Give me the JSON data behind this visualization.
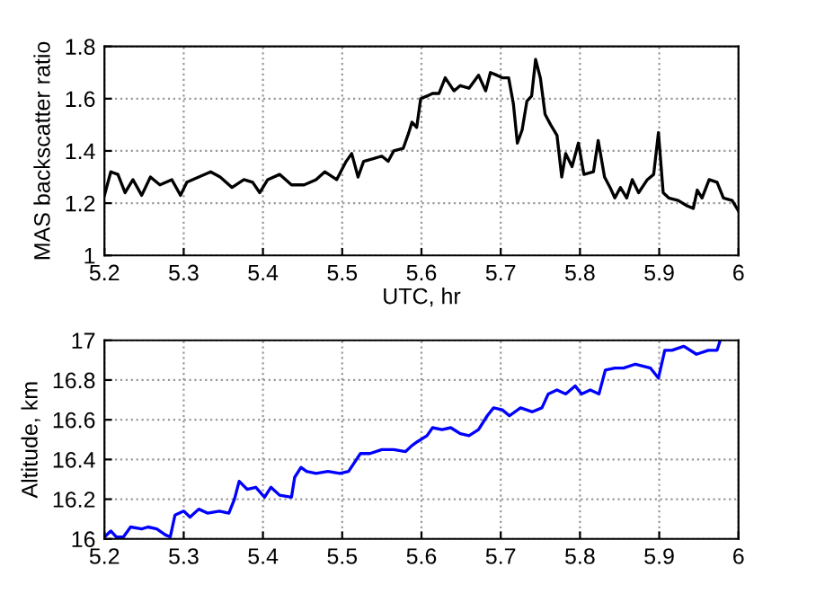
{
  "chart_data": [
    {
      "type": "line",
      "xlabel": "UTC, hr",
      "ylabel": "MAS backscatter ratio",
      "xlim": [
        5.2,
        6
      ],
      "ylim": [
        1,
        1.8
      ],
      "xticks": [
        5.2,
        5.3,
        5.4,
        5.5,
        5.6,
        5.7,
        5.8,
        5.9,
        6
      ],
      "yticks": [
        1,
        1.2,
        1.4,
        1.6,
        1.8
      ],
      "grid": true,
      "line_style": "solid",
      "series": [
        {
          "color": "#000000",
          "x": [
            5.2,
            5.208,
            5.217,
            5.226,
            5.236,
            5.247,
            5.258,
            5.27,
            5.285,
            5.296,
            5.304,
            5.319,
            5.334,
            5.346,
            5.361,
            5.376,
            5.387,
            5.396,
            5.406,
            5.421,
            5.436,
            5.452,
            5.467,
            5.478,
            5.493,
            5.505,
            5.512,
            5.52,
            5.527,
            5.539,
            5.55,
            5.558,
            5.565,
            5.577,
            5.584,
            5.588,
            5.594,
            5.599,
            5.607,
            5.614,
            5.622,
            5.63,
            5.641,
            5.649,
            5.66,
            5.672,
            5.681,
            5.687,
            5.695,
            5.702,
            5.71,
            5.716,
            5.721,
            5.727,
            5.733,
            5.739,
            5.744,
            5.75,
            5.756,
            5.763,
            5.771,
            5.777,
            5.782,
            5.79,
            5.798,
            5.805,
            5.817,
            5.823,
            5.831,
            5.838,
            5.844,
            5.851,
            5.859,
            5.866,
            5.874,
            5.885,
            5.893,
            5.899,
            5.905,
            5.912,
            5.924,
            5.935,
            5.943,
            5.948,
            5.954,
            5.963,
            5.973,
            5.981,
            5.992,
            6.0
          ],
          "values": [
            1.23,
            1.32,
            1.31,
            1.24,
            1.29,
            1.23,
            1.3,
            1.27,
            1.29,
            1.23,
            1.28,
            1.3,
            1.32,
            1.3,
            1.26,
            1.29,
            1.28,
            1.24,
            1.29,
            1.31,
            1.27,
            1.27,
            1.29,
            1.32,
            1.29,
            1.36,
            1.39,
            1.3,
            1.36,
            1.37,
            1.38,
            1.36,
            1.4,
            1.41,
            1.47,
            1.51,
            1.49,
            1.6,
            1.61,
            1.62,
            1.62,
            1.68,
            1.63,
            1.65,
            1.64,
            1.69,
            1.63,
            1.7,
            1.69,
            1.68,
            1.68,
            1.58,
            1.43,
            1.48,
            1.59,
            1.61,
            1.75,
            1.68,
            1.54,
            1.5,
            1.46,
            1.3,
            1.39,
            1.34,
            1.43,
            1.31,
            1.32,
            1.44,
            1.3,
            1.26,
            1.22,
            1.26,
            1.22,
            1.29,
            1.24,
            1.29,
            1.31,
            1.47,
            1.24,
            1.22,
            1.21,
            1.19,
            1.18,
            1.25,
            1.22,
            1.29,
            1.28,
            1.22,
            1.21,
            1.17
          ]
        }
      ]
    },
    {
      "type": "line",
      "ylabel": "Altitude, km",
      "xlim": [
        5.2,
        6
      ],
      "ylim": [
        16,
        17
      ],
      "xticks": [
        5.2,
        5.3,
        5.4,
        5.5,
        5.6,
        5.7,
        5.8,
        5.9,
        6
      ],
      "yticks": [
        16,
        16.2,
        16.4,
        16.6,
        16.8,
        17
      ],
      "grid": true,
      "line_style": "solid",
      "series": [
        {
          "color": "#0000ff",
          "x": [
            5.2,
            5.208,
            5.215,
            5.224,
            5.233,
            5.247,
            5.255,
            5.266,
            5.277,
            5.283,
            5.289,
            5.3,
            5.308,
            5.319,
            5.33,
            5.345,
            5.357,
            5.364,
            5.37,
            5.38,
            5.391,
            5.402,
            5.41,
            5.421,
            5.436,
            5.44,
            5.448,
            5.455,
            5.467,
            5.482,
            5.497,
            5.508,
            5.523,
            5.535,
            5.55,
            5.565,
            5.58,
            5.588,
            5.595,
            5.607,
            5.614,
            5.626,
            5.637,
            5.649,
            5.66,
            5.672,
            5.683,
            5.691,
            5.702,
            5.711,
            5.725,
            5.74,
            5.752,
            5.76,
            5.771,
            5.782,
            5.794,
            5.802,
            5.813,
            5.824,
            5.832,
            5.844,
            5.855,
            5.87,
            5.889,
            5.899,
            5.907,
            5.916,
            5.931,
            5.947,
            5.962,
            5.973,
            5.977
          ],
          "values": [
            16.01,
            16.04,
            16.01,
            16.01,
            16.06,
            16.05,
            16.06,
            16.05,
            16.02,
            16.01,
            16.12,
            16.14,
            16.11,
            16.15,
            16.13,
            16.14,
            16.13,
            16.2,
            16.29,
            16.25,
            16.26,
            16.21,
            16.26,
            16.22,
            16.21,
            16.31,
            16.36,
            16.34,
            16.33,
            16.34,
            16.33,
            16.34,
            16.43,
            16.43,
            16.45,
            16.45,
            16.44,
            16.47,
            16.49,
            16.52,
            16.56,
            16.55,
            16.56,
            16.53,
            16.52,
            16.55,
            16.62,
            16.66,
            16.65,
            16.62,
            16.66,
            16.64,
            16.66,
            16.73,
            16.75,
            16.73,
            16.77,
            16.73,
            16.75,
            16.73,
            16.85,
            16.86,
            16.86,
            16.88,
            16.86,
            16.81,
            16.95,
            16.95,
            16.97,
            16.93,
            16.95,
            16.95,
            17.0
          ]
        }
      ]
    }
  ]
}
